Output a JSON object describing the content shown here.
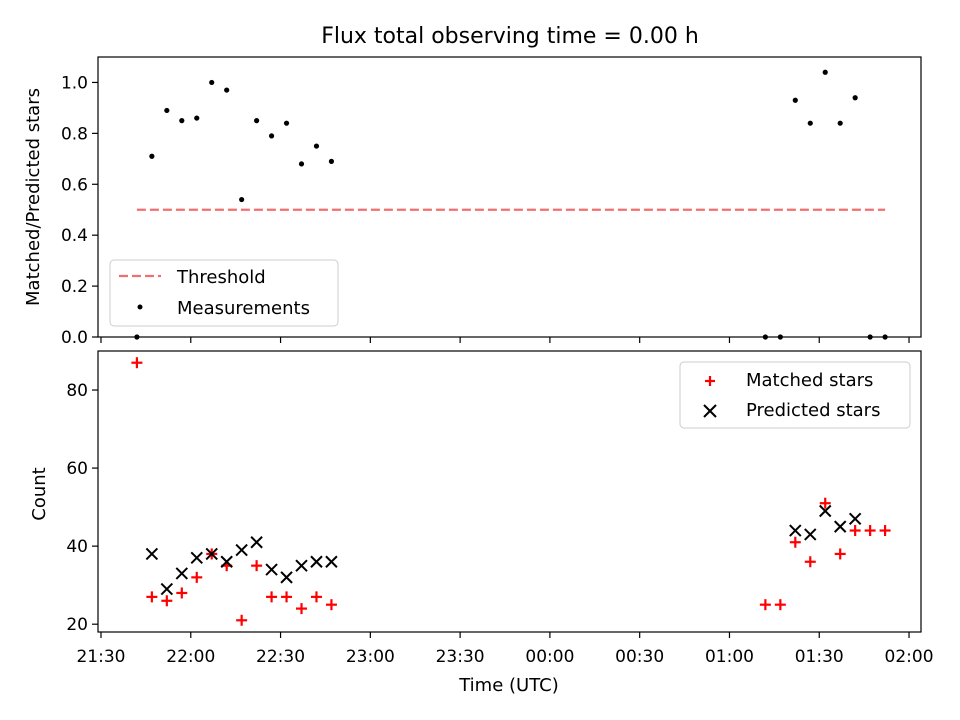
{
  "title": "Flux total observing time = 0.00 h",
  "chart_data": [
    {
      "type": "scatter",
      "panel": "top",
      "ylabel": "Matched/Predicted stars",
      "ylim": [
        0,
        1.1
      ],
      "yticks": [
        "0.0",
        "0.2",
        "0.4",
        "0.6",
        "0.8",
        "1.0"
      ],
      "grid": false,
      "legend_position": "lower-left",
      "series": [
        {
          "name": "Threshold",
          "style": "dashed-line",
          "color": "#f07070",
          "x": [
            "21:42",
            "01:52"
          ],
          "y": [
            0.5,
            0.5
          ]
        },
        {
          "name": "Measurements",
          "style": "dot",
          "color": "#000000",
          "x": [
            "21:42",
            "21:47",
            "21:52",
            "21:57",
            "22:02",
            "22:07",
            "22:12",
            "22:17",
            "22:22",
            "22:27",
            "22:32",
            "22:37",
            "22:42",
            "22:47",
            "01:12",
            "01:17",
            "01:22",
            "01:27",
            "01:32",
            "01:37",
            "01:42",
            "01:47",
            "01:52"
          ],
          "y": [
            0.0,
            0.71,
            0.89,
            0.85,
            0.86,
            1.0,
            0.97,
            0.54,
            0.85,
            0.79,
            0.84,
            0.68,
            0.75,
            0.69,
            0.0,
            0.0,
            0.93,
            0.84,
            1.04,
            0.84,
            0.94,
            0.0,
            0.0
          ]
        }
      ]
    },
    {
      "type": "scatter",
      "panel": "bottom",
      "xlabel": "Time (UTC)",
      "ylabel": "Count",
      "ylim": [
        18,
        90
      ],
      "yticks": [
        "20",
        "40",
        "60",
        "80"
      ],
      "xlim": [
        "21:29",
        "02:04"
      ],
      "xticks": [
        "21:30",
        "22:00",
        "22:30",
        "23:00",
        "23:30",
        "00:00",
        "00:30",
        "01:00",
        "01:30",
        "02:00"
      ],
      "grid": false,
      "legend_position": "upper-right",
      "series": [
        {
          "name": "Matched stars",
          "marker": "+",
          "color": "#ff0000",
          "x": [
            "21:42",
            "21:47",
            "21:52",
            "21:57",
            "22:02",
            "22:07",
            "22:12",
            "22:17",
            "22:22",
            "22:27",
            "22:32",
            "22:37",
            "22:42",
            "22:47",
            "01:12",
            "01:17",
            "01:22",
            "01:27",
            "01:32",
            "01:37",
            "01:42",
            "01:47",
            "01:52"
          ],
          "y": [
            87,
            27,
            26,
            28,
            32,
            38,
            35,
            21,
            35,
            27,
            27,
            24,
            27,
            25,
            25,
            25,
            41,
            36,
            51,
            38,
            44,
            44,
            44
          ]
        },
        {
          "name": "Predicted stars",
          "marker": "x",
          "color": "#000000",
          "x": [
            "21:47",
            "21:52",
            "21:57",
            "22:02",
            "22:07",
            "22:12",
            "22:17",
            "22:22",
            "22:27",
            "22:32",
            "22:37",
            "22:42",
            "22:47",
            "01:22",
            "01:27",
            "01:32",
            "01:37",
            "01:42"
          ],
          "y": [
            38,
            29,
            33,
            37,
            38,
            36,
            39,
            41,
            34,
            32,
            35,
            36,
            36,
            44,
            43,
            49,
            45,
            47
          ]
        }
      ]
    }
  ],
  "colors": {
    "matched": "#ff0000",
    "predicted": "#000000",
    "threshold": "#f07070",
    "measurement": "#000000"
  }
}
